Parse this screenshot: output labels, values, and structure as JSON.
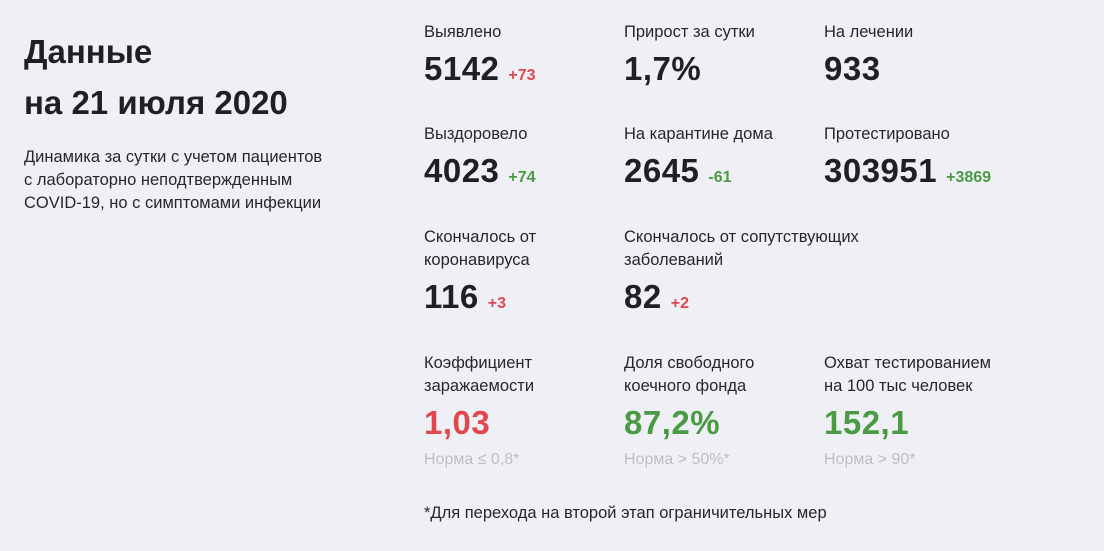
{
  "header": {
    "title_line1": "Данные",
    "title_line2": "на 21 июля 2020",
    "subtitle_line1": "Динамика за сутки с учетом пациентов",
    "subtitle_line2": "с лабораторно неподтвержденным",
    "subtitle_line3": "COVID-19, но с симптомами инфекции"
  },
  "stats": {
    "detected": {
      "label": "Выявлено",
      "value": "5142",
      "delta": "+73"
    },
    "growth": {
      "label": "Прирост за сутки",
      "value": "1,7%"
    },
    "treatment": {
      "label": "На лечении",
      "value": "933"
    },
    "recovered": {
      "label": "Выздоровело",
      "value": "4023",
      "delta": "+74"
    },
    "quarantine": {
      "label": "На карантине дома",
      "value": "2645",
      "delta": "-61"
    },
    "tested": {
      "label": "Протестировано",
      "value": "303951",
      "delta": "+3869"
    },
    "died_covid": {
      "label_line1": "Скончалось от",
      "label_line2": "коронавируса",
      "value": "116",
      "delta": "+3"
    },
    "died_other": {
      "label_line1": "Скончалось от сопутствующих",
      "label_line2": "заболеваний",
      "value": "82",
      "delta": "+2"
    },
    "infection_rate": {
      "label_line1": "Коэффициент",
      "label_line2": "заражаемости",
      "value": "1,03",
      "norm": "Норма ≤ 0,8*"
    },
    "beds": {
      "label_line1": "Доля свободного",
      "label_line2": "коечного фонда",
      "value": "87,2%",
      "norm": "Норма > 50%*"
    },
    "coverage": {
      "label_line1": "Охват тестированием",
      "label_line2": "на 100 тыс человек",
      "value": "152,1",
      "norm": "Норма > 90*"
    }
  },
  "footnote": "*Для перехода на второй этап ограничительных мер",
  "colors": {
    "increase": "#e3474e",
    "decrease": "#4b9a44",
    "background": "#eff0f5"
  }
}
